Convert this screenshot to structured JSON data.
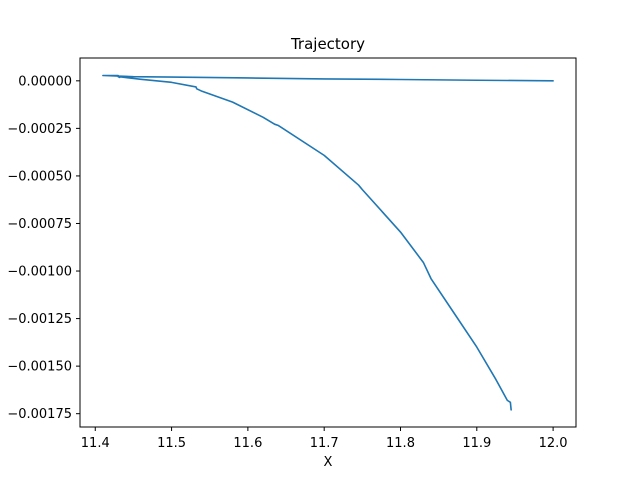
{
  "chart_data": {
    "type": "line",
    "title": "Trajectory",
    "xlabel": "X",
    "ylabel": "",
    "xlim": [
      11.38,
      12.03
    ],
    "ylim": [
      -0.00182,
      0.00012
    ],
    "xticks": [
      11.4,
      11.5,
      11.6,
      11.7,
      11.8,
      11.9,
      12.0
    ],
    "xtick_labels": [
      "11.4",
      "11.5",
      "11.6",
      "11.7",
      "11.8",
      "11.9",
      "12.0"
    ],
    "yticks": [
      0.0,
      -0.00025,
      -0.0005,
      -0.00075,
      -0.001,
      -0.00125,
      -0.0015,
      -0.00175
    ],
    "ytick_labels": [
      "0.00000",
      "−0.00025",
      "−0.00050",
      "−0.00075",
      "−0.00100",
      "−0.00125",
      "−0.00150",
      "−0.00175"
    ],
    "grid": false,
    "color": "#1f77b4",
    "series": [
      {
        "x": [
          12.0,
          11.9,
          11.8,
          11.7,
          11.6,
          11.5,
          11.45,
          11.41,
          11.43,
          11.432,
          11.43,
          11.46,
          11.5,
          11.532,
          11.533,
          11.54,
          11.58,
          11.62,
          11.635,
          11.64,
          11.7,
          11.745,
          11.75,
          11.8,
          11.83,
          11.84,
          11.87,
          11.9,
          11.925,
          11.94,
          11.944,
          11.945
        ],
        "y": [
          0.0,
          3e-06,
          7e-06,
          1e-05,
          1.5e-05,
          2e-05,
          2.2e-05,
          2.8e-05,
          2.8e-05,
          1.8e-05,
          2.2e-05,
          8e-06,
          -8e-06,
          -3.2e-05,
          -4.2e-05,
          -5.5e-05,
          -0.000112,
          -0.000192,
          -0.000228,
          -0.000235,
          -0.000392,
          -0.000548,
          -0.000572,
          -0.000795,
          -0.000955,
          -0.00104,
          -0.00122,
          -0.0014,
          -0.00157,
          -0.00168,
          -0.00169,
          -0.00173
        ]
      }
    ]
  }
}
